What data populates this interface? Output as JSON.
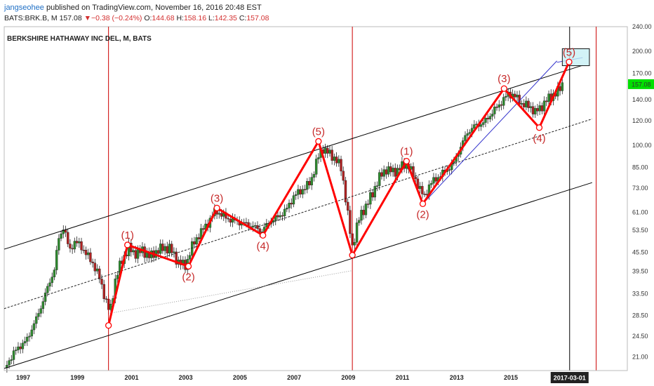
{
  "header": {
    "author": "jangseohee",
    "published": "published on TradingView.com, November 16, 2016 20:48 EST",
    "symbol": "BATS:BRK.B, M",
    "last": "157.08",
    "change": "▼−0.38 (−0.24%)",
    "o_label": "O:",
    "o_value": "144.68",
    "h_label": "H:",
    "h_value": "158.16",
    "l_label": "L:",
    "l_value": "142.35",
    "c_label": "C:",
    "c_value": "157.08"
  },
  "colors": {
    "up": "#2e8b2e",
    "down": "#b22222",
    "wave": "#ff0000",
    "vline": "#cc0000",
    "channel": "#000000",
    "trend": "#3333cc",
    "target_fill": "#c7f0f5",
    "price_tag": "#00e000"
  },
  "chart_data": {
    "type": "candlestick",
    "title": "BERKSHIRE HATHAWAY INC DEL, M, BATS",
    "y_scale": "log",
    "ylim": [
      19,
      240
    ],
    "xlim": [
      1996.3,
      2019.3
    ],
    "y_ticks": [
      240,
      200,
      170,
      140,
      120,
      100,
      85,
      73,
      61,
      53.5,
      45.5,
      39.5,
      33.5,
      28.5,
      24.5,
      21
    ],
    "y_tick_labels": [
      "240.00",
      "200.00",
      "170.00",
      "140.00",
      "120.00",
      "100.00",
      "85.00",
      "73.00",
      "61.00",
      "53.50",
      "45.50",
      "39.50",
      "33.50",
      "28.50",
      "24.50",
      "21.00"
    ],
    "x_ticks": [
      "1997",
      "1999",
      "2001",
      "2003",
      "2005",
      "2007",
      "2009",
      "2011",
      "2013",
      "2015"
    ],
    "x_tick_values": [
      1997,
      1999,
      2001,
      2003,
      2005,
      2007,
      2009,
      2011,
      2013,
      2015
    ],
    "x_highlight": {
      "date": 2017.17,
      "label": "2017-03-01"
    },
    "last_price": {
      "value": 157.08,
      "label": "157.08"
    },
    "price_path": [
      [
        1996.4,
        20
      ],
      [
        1996.8,
        22.5
      ],
      [
        1997.1,
        23.5
      ],
      [
        1997.5,
        28
      ],
      [
        1997.8,
        33
      ],
      [
        1998.0,
        37
      ],
      [
        1998.15,
        40
      ],
      [
        1998.3,
        50
      ],
      [
        1998.5,
        55
      ],
      [
        1998.7,
        46
      ],
      [
        1998.9,
        49
      ],
      [
        1999.1,
        48
      ],
      [
        1999.4,
        44
      ],
      [
        1999.6,
        41.5
      ],
      [
        1999.8,
        38
      ],
      [
        2000.0,
        33
      ],
      [
        2000.2,
        29
      ],
      [
        2000.4,
        37
      ],
      [
        2000.6,
        42
      ],
      [
        2000.9,
        47
      ],
      [
        2001.1,
        45
      ],
      [
        2001.4,
        46
      ],
      [
        2001.7,
        44
      ],
      [
        2002.0,
        46.5
      ],
      [
        2002.4,
        47
      ],
      [
        2002.7,
        42.5
      ],
      [
        2003.0,
        41
      ],
      [
        2003.2,
        47
      ],
      [
        2003.5,
        52
      ],
      [
        2003.8,
        56
      ],
      [
        2004.1,
        62
      ],
      [
        2004.3,
        60
      ],
      [
        2004.6,
        58
      ],
      [
        2004.9,
        57
      ],
      [
        2005.2,
        56
      ],
      [
        2005.5,
        55
      ],
      [
        2005.8,
        53
      ],
      [
        2006.1,
        57
      ],
      [
        2006.4,
        59
      ],
      [
        2006.7,
        62
      ],
      [
        2007.0,
        69
      ],
      [
        2007.3,
        72
      ],
      [
        2007.6,
        76
      ],
      [
        2007.85,
        90
      ],
      [
        2008.05,
        98
      ],
      [
        2008.3,
        94
      ],
      [
        2008.55,
        90
      ],
      [
        2008.75,
        84
      ],
      [
        2008.9,
        68
      ],
      [
        2009.05,
        54
      ],
      [
        2009.15,
        47
      ],
      [
        2009.35,
        57
      ],
      [
        2009.6,
        63
      ],
      [
        2009.9,
        70
      ],
      [
        2010.1,
        78
      ],
      [
        2010.4,
        84
      ],
      [
        2010.7,
        82
      ],
      [
        2011.0,
        86
      ],
      [
        2011.2,
        87
      ],
      [
        2011.4,
        80
      ],
      [
        2011.6,
        74
      ],
      [
        2011.8,
        68
      ],
      [
        2012.0,
        75
      ],
      [
        2012.3,
        79
      ],
      [
        2012.6,
        83
      ],
      [
        2012.9,
        88
      ],
      [
        2013.1,
        97
      ],
      [
        2013.4,
        110
      ],
      [
        2013.7,
        116
      ],
      [
        2014.0,
        118
      ],
      [
        2014.3,
        127
      ],
      [
        2014.6,
        136
      ],
      [
        2014.9,
        146
      ],
      [
        2015.1,
        145
      ],
      [
        2015.4,
        136
      ],
      [
        2015.7,
        133
      ],
      [
        2015.9,
        128
      ],
      [
        2016.1,
        132
      ],
      [
        2016.3,
        139
      ],
      [
        2016.55,
        145
      ],
      [
        2016.75,
        149
      ],
      [
        2016.9,
        157
      ]
    ],
    "wave_pattern": [
      {
        "date": 2000.15,
        "price": 26.5,
        "label": ""
      },
      {
        "date": 2000.85,
        "price": 48,
        "label": "(1)"
      },
      {
        "date": 2003.1,
        "price": 41,
        "label": "(2)"
      },
      {
        "date": 2004.15,
        "price": 63,
        "label": "(3)"
      },
      {
        "date": 2005.85,
        "price": 51.5,
        "label": "(4)"
      },
      {
        "date": 2007.9,
        "price": 103,
        "label": "(5)"
      },
      {
        "date": 2009.15,
        "price": 44.5,
        "label": ""
      },
      {
        "date": 2011.15,
        "price": 89,
        "label": "(1)"
      },
      {
        "date": 2011.75,
        "price": 65,
        "label": "(2)"
      },
      {
        "date": 2014.75,
        "price": 152,
        "label": "(3)"
      },
      {
        "date": 2016.05,
        "price": 114,
        "label": "(4)"
      },
      {
        "date": 2017.15,
        "price": 185,
        "label": "(5)"
      }
    ],
    "lines": [
      {
        "style": "channel",
        "from": [
          1996.3,
          46.5
        ],
        "to": [
          2017.65,
          180.5
        ]
      },
      {
        "style": "channel",
        "from": [
          1996.3,
          19.3
        ],
        "to": [
          2018.0,
          76
        ]
      },
      {
        "style": "dashed",
        "from": [
          1996.3,
          30
        ],
        "to": [
          2018.0,
          121.5
        ]
      },
      {
        "style": "dotted",
        "from": [
          2000.2,
          29
        ],
        "to": [
          2009.15,
          39.7
        ]
      },
      {
        "style": "trend",
        "from": [
          2011.75,
          65
        ],
        "to": [
          2016.7,
          186.5
        ]
      },
      {
        "style": "trend",
        "from": [
          2016.7,
          184.5
        ],
        "to": [
          2017.65,
          191
        ]
      }
    ],
    "vertical_lines": [
      2000.15,
      2009.15,
      2018.15
    ],
    "target_zone": {
      "from_date": 2016.9,
      "to_date": 2017.9,
      "price_low": 180,
      "price_high": 204
    }
  }
}
